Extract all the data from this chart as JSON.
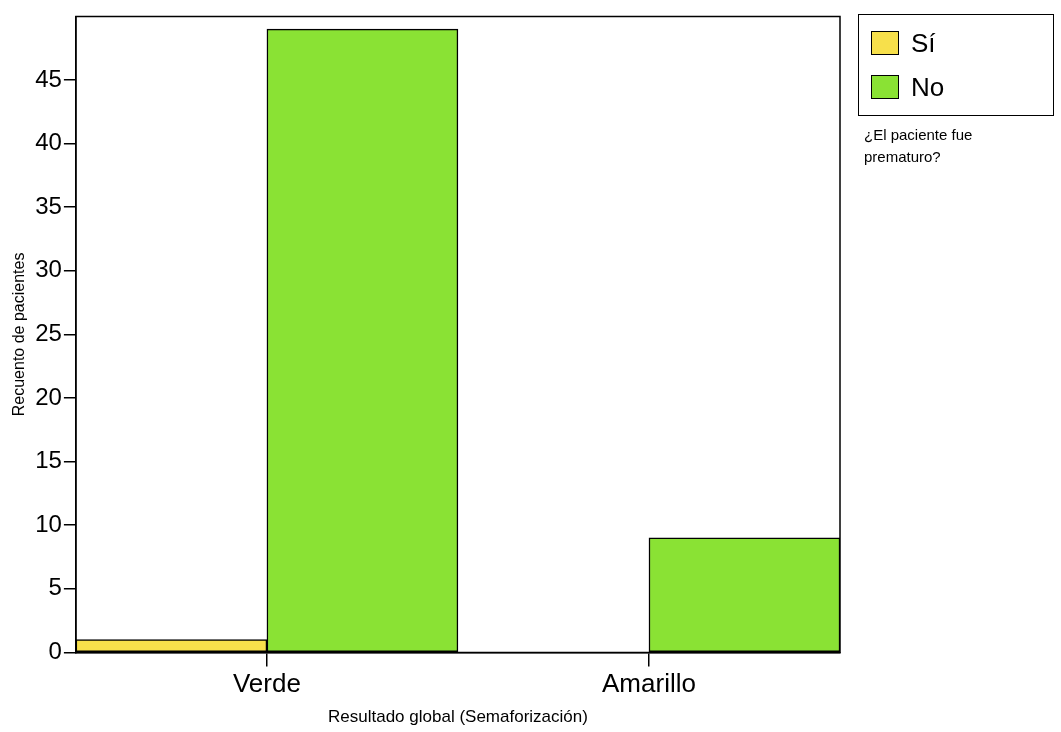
{
  "chart_data": {
    "type": "bar",
    "xlabel": "Resultado global (Semaforización)",
    "ylabel": "Recuento de pacientes",
    "legend_title": "¿El paciente fue prematuro?",
    "categories": [
      "Verde",
      "Amarillo"
    ],
    "series": [
      {
        "name": "Sí",
        "color": "#f7e04b",
        "values": [
          1,
          0
        ]
      },
      {
        "name": "No",
        "color": "#8ae234",
        "values": [
          49,
          9
        ]
      }
    ],
    "ylim": [
      0,
      50
    ],
    "yticks": [
      0,
      5,
      10,
      15,
      20,
      25,
      30,
      35,
      40,
      45
    ],
    "grid": false,
    "legend": "top right"
  }
}
